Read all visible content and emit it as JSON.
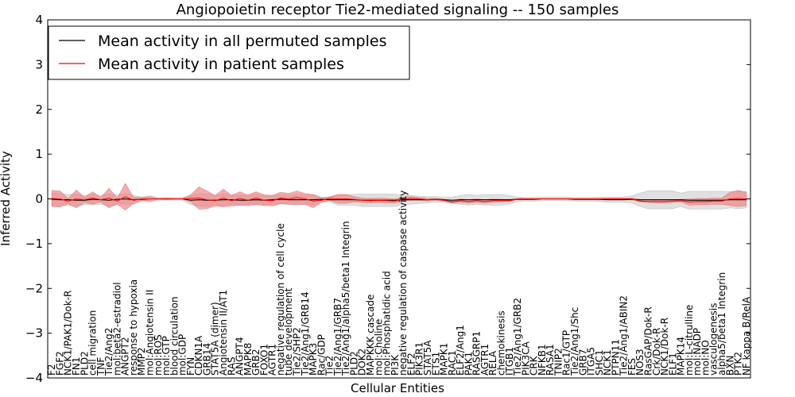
{
  "chart_data": {
    "type": "line",
    "title": "Angiopoietin receptor Tie2-mediated signaling -- 150 samples",
    "xlabel": "Cellular Entities",
    "ylabel": "Inferred Activity",
    "ylim": [
      -4,
      4
    ],
    "yticks": [
      "4",
      "3",
      "2",
      "1",
      "0",
      "−1",
      "−2",
      "−3",
      "−4"
    ],
    "ytick_values": [
      4,
      3,
      2,
      1,
      0,
      -1,
      -2,
      -3,
      -4
    ],
    "legend_position": "upper-left",
    "colors": {
      "permuted": "#000000",
      "patient": "#ff0000",
      "patient_band": "#f08080",
      "permuted_band": "#bbbbbb"
    },
    "categories": [
      "F2",
      "FGF2",
      "NCK1/PAK1/Dok-R",
      "FN1",
      "PLD2",
      "cell migration",
      "TNF",
      "Tie2/Ang2",
      "mol:beta2-estradiol",
      "ANGPT2",
      "response to hypoxia",
      "MMP2",
      "mol:Angiotensin II",
      "mol:ROS",
      "mol:GTP",
      "blood circulation",
      "mol:GDP",
      "FYN",
      "CDKN1A",
      "GRB14",
      "STAT5A (dimer)",
      "Angiotensin II/AT1",
      "RAS",
      "ANGPT4",
      "MAPK8",
      "GRB2",
      "FOXO1",
      "AGTR1",
      "negative regulation of cell cycle",
      "tube development",
      "Tie2/SHP2",
      "Tie2/Ang1/GRB14",
      "MAPK3",
      "Rac/GDP",
      "Tie2",
      "Tie2/Ang1/GRB7",
      "Tie2/Ang1/alpha5/beta1 Integrin",
      "PLD2",
      "DOK2",
      "MAPKKK cascade",
      "mol:Choline",
      "mol:Phosphatidic acid",
      "PI3K",
      "negative regulation of caspase activity",
      "ELF2",
      "PIK3R1",
      "STAT5A",
      "ETS1",
      "MAPK1",
      "RAC1",
      "ELF2/Ang1",
      "PAK1",
      "RASGRP1",
      "AGTR1",
      "RELA",
      "chemokinesis",
      "ITGB1",
      "Tie2/Ang1/GRB2",
      "PIK3CA",
      "CRK",
      "NFKB1",
      "RASA1",
      "TNIP2",
      "Rac1/GTP",
      "Tie2/Ang1/Shc",
      "GRB7",
      "ITGA5",
      "SHC1",
      "NCK1",
      "PTPN11",
      "Tie2/Ang1/ABIN2",
      "FES",
      "NOS3",
      "RasGAP/Dok-R",
      "Crk/Dok-R",
      "NCK1/Dok-R",
      "ELF1",
      "MAPK14",
      "mol:L-citrulline",
      "mol:NADP",
      "mol:NO",
      "vasculogenesis",
      "alpha5/beta1 Integrin",
      "BXN",
      "PTK2",
      "NF kappa B/RelA"
    ],
    "series": [
      {
        "name": "Mean activity in all permuted samples",
        "values": [
          -0.01,
          -0.02,
          -0.02,
          -0.03,
          -0.03,
          -0.01,
          -0.02,
          -0.03,
          -0.01,
          0.0,
          -0.02,
          -0.01,
          0.0,
          0.0,
          0.0,
          0.0,
          0.0,
          -0.03,
          -0.02,
          -0.03,
          -0.03,
          -0.02,
          -0.02,
          -0.03,
          -0.03,
          -0.02,
          -0.03,
          -0.02,
          -0.01,
          -0.02,
          -0.02,
          -0.02,
          -0.02,
          -0.01,
          -0.02,
          -0.02,
          -0.02,
          -0.02,
          -0.03,
          -0.03,
          -0.03,
          -0.03,
          -0.03,
          -0.02,
          -0.02,
          -0.02,
          -0.02,
          -0.01,
          -0.02,
          -0.03,
          -0.02,
          -0.02,
          -0.02,
          -0.02,
          -0.02,
          -0.02,
          -0.02,
          -0.01,
          -0.01,
          -0.01,
          0.0,
          0.0,
          0.0,
          0.0,
          -0.01,
          -0.01,
          -0.01,
          -0.01,
          -0.02,
          -0.02,
          -0.02,
          -0.01,
          -0.02,
          -0.02,
          -0.02,
          -0.02,
          -0.02,
          -0.02,
          -0.03,
          -0.03,
          -0.03,
          -0.03,
          -0.03,
          -0.02,
          -0.02,
          -0.02
        ]
      },
      {
        "name": "Mean activity in patient samples",
        "values": [
          0.01,
          0.0,
          -0.05,
          0.0,
          -0.02,
          0.02,
          -0.02,
          0.02,
          -0.05,
          0.05,
          -0.03,
          0.0,
          0.0,
          0.0,
          0.0,
          0.0,
          0.0,
          0.01,
          0.02,
          -0.02,
          -0.04,
          0.02,
          -0.04,
          0.01,
          -0.03,
          0.02,
          -0.03,
          -0.04,
          0.02,
          0.0,
          0.03,
          0.0,
          -0.05,
          -0.03,
          0.01,
          0.0,
          0.0,
          -0.01,
          -0.03,
          -0.04,
          -0.03,
          -0.04,
          -0.05,
          0.0,
          0.01,
          0.0,
          -0.02,
          -0.01,
          -0.03,
          -0.07,
          -0.04,
          -0.06,
          -0.04,
          -0.06,
          -0.04,
          -0.04,
          -0.04,
          0.0,
          0.0,
          0.0,
          0.0,
          0.0,
          0.0,
          0.0,
          0.0,
          0.0,
          0.0,
          0.0,
          0.0,
          0.0,
          0.0,
          0.0,
          -0.05,
          -0.06,
          -0.06,
          -0.06,
          -0.05,
          -0.04,
          -0.07,
          -0.06,
          -0.06,
          -0.05,
          -0.05,
          0.0,
          0.01,
          0.0
        ]
      }
    ],
    "patient_band_halfwidth": [
      0.18,
      0.18,
      0.06,
      0.2,
      0.06,
      0.14,
      0.05,
      0.22,
      0.07,
      0.3,
      0.07,
      0.03,
      0.05,
      0.01,
      0.02,
      0.01,
      0.01,
      0.08,
      0.25,
      0.2,
      0.12,
      0.2,
      0.12,
      0.15,
      0.12,
      0.14,
      0.12,
      0.12,
      0.13,
      0.12,
      0.15,
      0.12,
      0.15,
      0.05,
      0.04,
      0.1,
      0.1,
      0.06,
      0.05,
      0.05,
      0.05,
      0.05,
      0.05,
      0.04,
      0.04,
      0.03,
      0.03,
      0.02,
      0.02,
      0.02,
      0.04,
      0.04,
      0.04,
      0.04,
      0.04,
      0.03,
      0.02,
      0.01,
      0.01,
      0.01,
      0.01,
      0.01,
      0.01,
      0.01,
      0.01,
      0.01,
      0.01,
      0.01,
      0.02,
      0.02,
      0.02,
      0.02,
      0.02,
      0.02,
      0.03,
      0.03,
      0.03,
      0.03,
      0.07,
      0.07,
      0.07,
      0.07,
      0.07,
      0.15,
      0.18,
      0.15
    ],
    "permuted_band_halfwidth": [
      0.14,
      0.14,
      0.12,
      0.14,
      0.1,
      0.12,
      0.1,
      0.14,
      0.1,
      0.12,
      0.1,
      0.05,
      0.07,
      0.03,
      0.03,
      0.03,
      0.03,
      0.1,
      0.14,
      0.14,
      0.1,
      0.14,
      0.1,
      0.12,
      0.1,
      0.12,
      0.1,
      0.1,
      0.1,
      0.1,
      0.12,
      0.1,
      0.12,
      0.05,
      0.05,
      0.12,
      0.12,
      0.12,
      0.14,
      0.14,
      0.14,
      0.14,
      0.14,
      0.1,
      0.1,
      0.08,
      0.07,
      0.06,
      0.06,
      0.07,
      0.1,
      0.12,
      0.1,
      0.12,
      0.12,
      0.12,
      0.1,
      0.05,
      0.04,
      0.04,
      0.04,
      0.04,
      0.04,
      0.04,
      0.04,
      0.04,
      0.04,
      0.05,
      0.06,
      0.06,
      0.06,
      0.08,
      0.15,
      0.2,
      0.2,
      0.2,
      0.2,
      0.15,
      0.2,
      0.2,
      0.2,
      0.2,
      0.2,
      0.18,
      0.2,
      0.18
    ]
  }
}
